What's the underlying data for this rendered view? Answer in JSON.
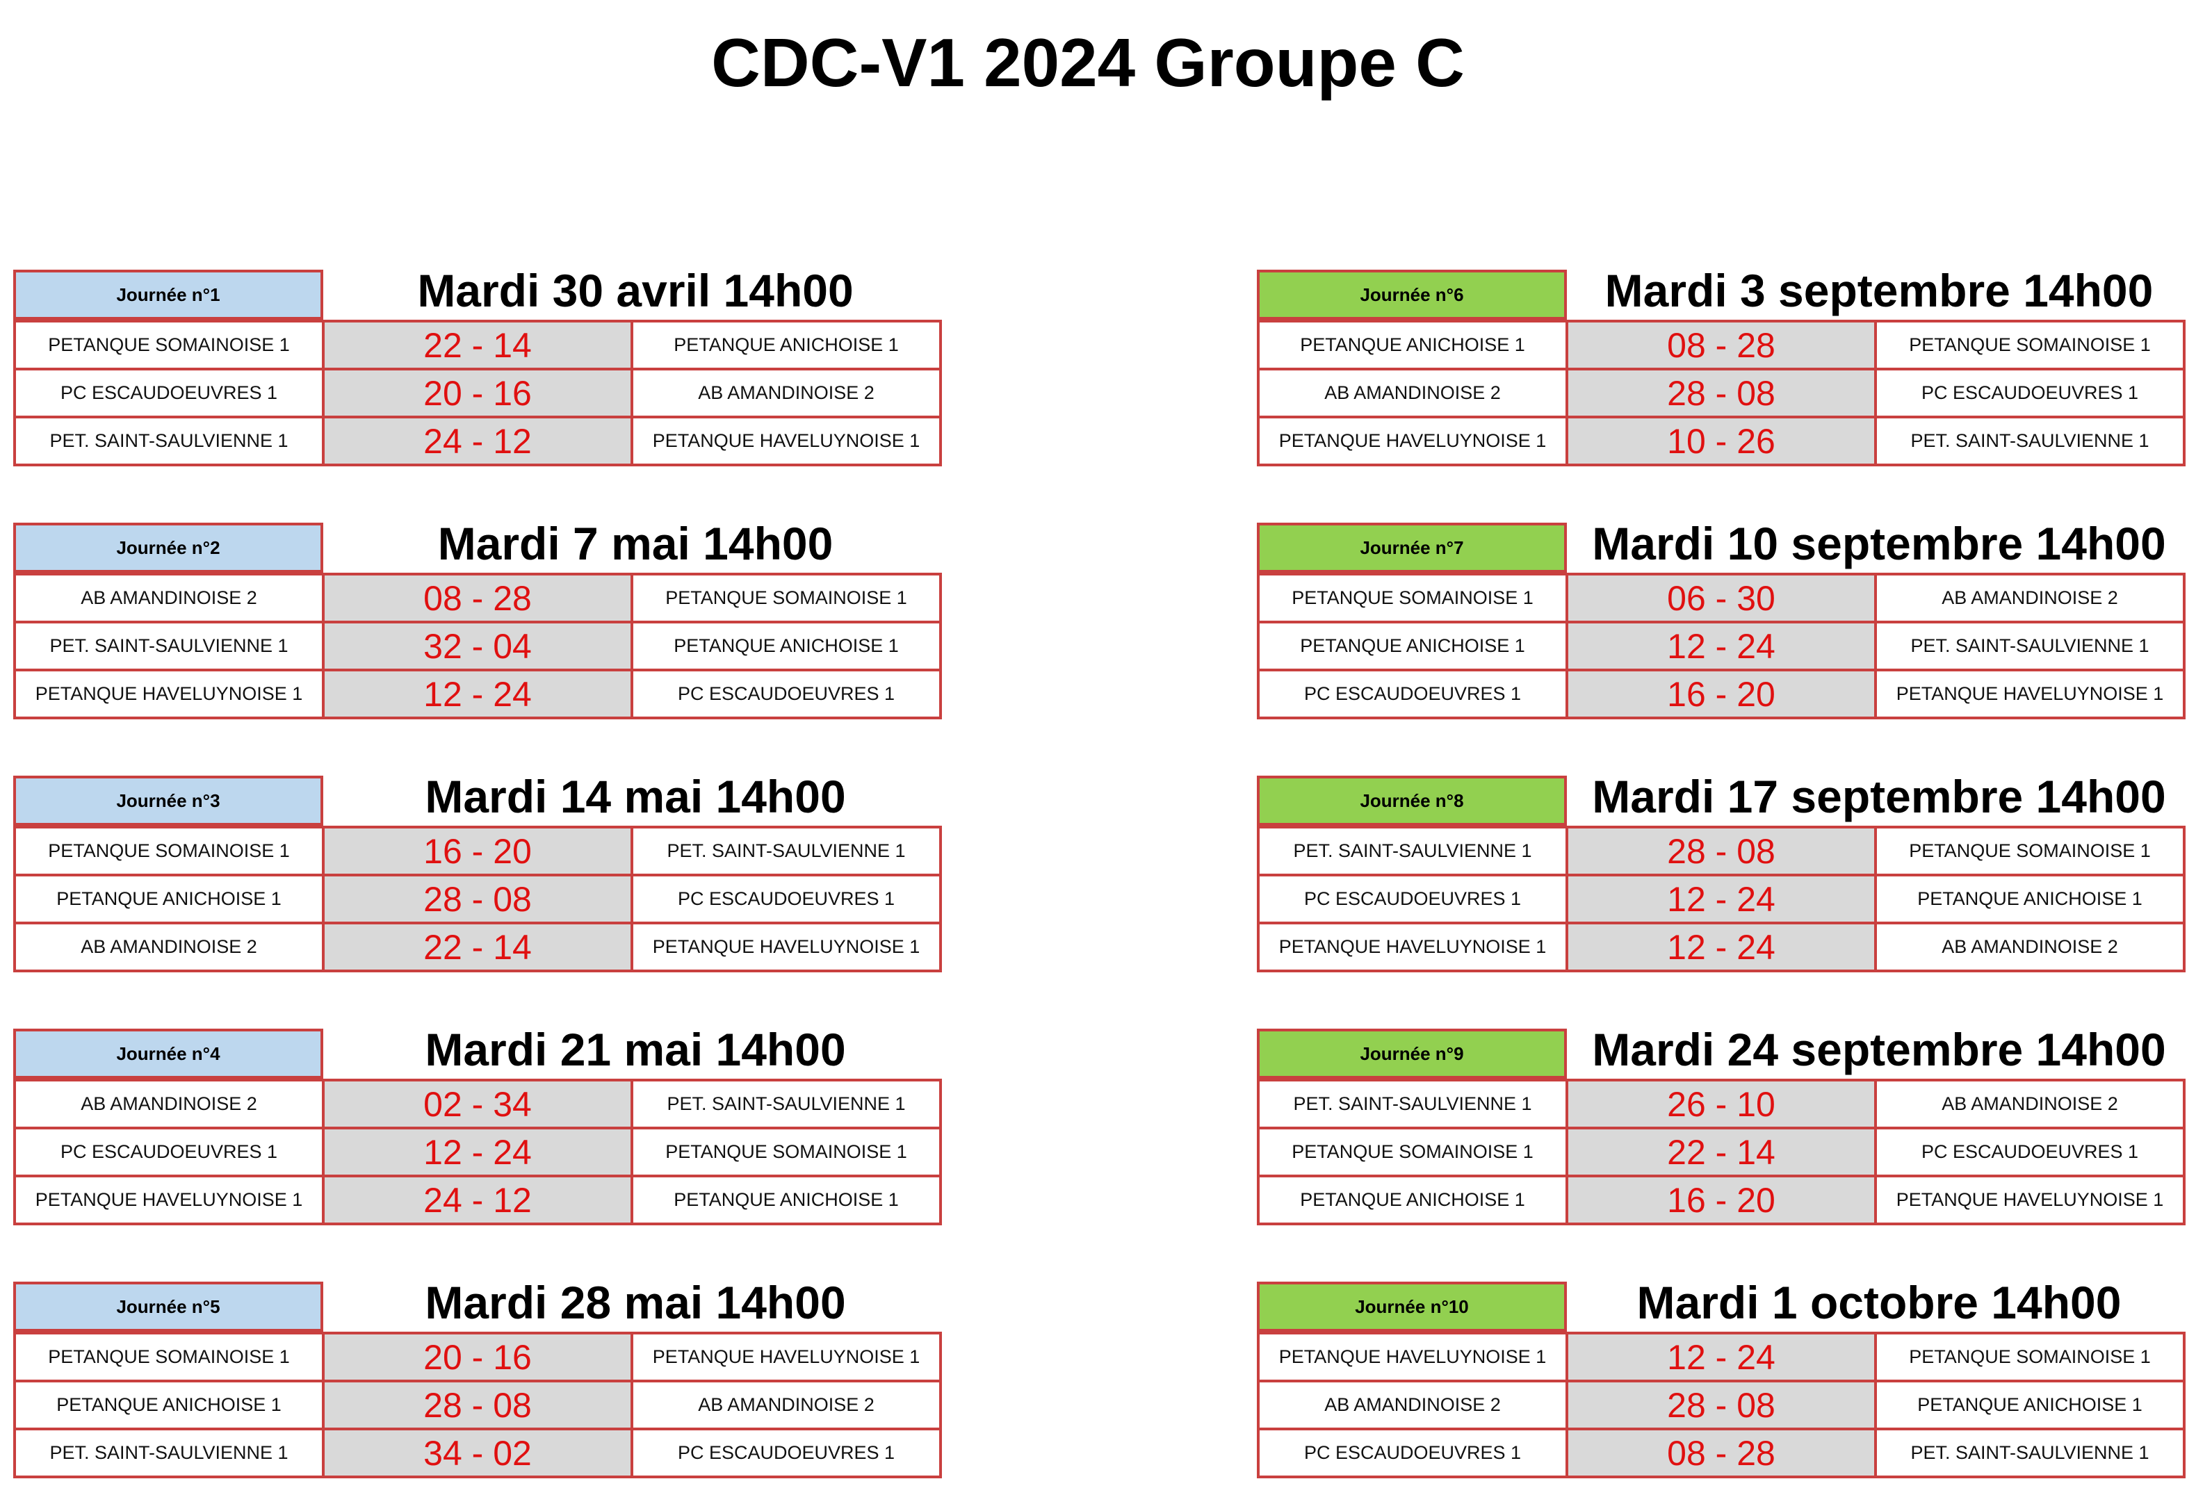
{
  "title": "CDC-V1 2024 Groupe C",
  "colors": {
    "border": "#c9403f",
    "label_left_bg": "#bdd7ee",
    "label_right_bg": "#92d050",
    "score_bg": "#d9d9d9",
    "score_text": "#e01010"
  },
  "journees": [
    {
      "label": "Journée n°1",
      "date": "Mardi 30 avril 14h00",
      "matches": [
        {
          "home": "PETANQUE SOMAINOISE 1",
          "score": "22 - 14",
          "away": "PETANQUE ANICHOISE 1"
        },
        {
          "home": "PC ESCAUDOEUVRES 1",
          "score": "20 - 16",
          "away": "AB AMANDINOISE 2"
        },
        {
          "home": "PET. SAINT-SAULVIENNE 1",
          "score": "24 - 12",
          "away": "PETANQUE HAVELUYNOISE 1"
        }
      ]
    },
    {
      "label": "Journée n°2",
      "date": "Mardi 7 mai 14h00",
      "matches": [
        {
          "home": "AB AMANDINOISE 2",
          "score": "08 - 28",
          "away": "PETANQUE SOMAINOISE 1"
        },
        {
          "home": "PET. SAINT-SAULVIENNE 1",
          "score": "32 - 04",
          "away": "PETANQUE ANICHOISE 1"
        },
        {
          "home": "PETANQUE HAVELUYNOISE 1",
          "score": "12 - 24",
          "away": "PC ESCAUDOEUVRES 1"
        }
      ]
    },
    {
      "label": "Journée n°3",
      "date": "Mardi 14 mai 14h00",
      "matches": [
        {
          "home": "PETANQUE SOMAINOISE 1",
          "score": "16 - 20",
          "away": "PET. SAINT-SAULVIENNE 1"
        },
        {
          "home": "PETANQUE ANICHOISE 1",
          "score": "28 - 08",
          "away": "PC ESCAUDOEUVRES 1"
        },
        {
          "home": "AB AMANDINOISE 2",
          "score": "22 - 14",
          "away": "PETANQUE HAVELUYNOISE 1"
        }
      ]
    },
    {
      "label": "Journée n°4",
      "date": "Mardi 21 mai 14h00",
      "matches": [
        {
          "home": "AB AMANDINOISE 2",
          "score": "02 - 34",
          "away": "PET. SAINT-SAULVIENNE 1"
        },
        {
          "home": "PC ESCAUDOEUVRES 1",
          "score": "12 - 24",
          "away": "PETANQUE SOMAINOISE 1"
        },
        {
          "home": "PETANQUE HAVELUYNOISE 1",
          "score": "24 - 12",
          "away": "PETANQUE ANICHOISE 1"
        }
      ]
    },
    {
      "label": "Journée n°5",
      "date": "Mardi 28 mai 14h00",
      "matches": [
        {
          "home": "PETANQUE SOMAINOISE 1",
          "score": "20 - 16",
          "away": "PETANQUE HAVELUYNOISE 1"
        },
        {
          "home": "PETANQUE ANICHOISE 1",
          "score": "28 - 08",
          "away": "AB AMANDINOISE 2"
        },
        {
          "home": "PET. SAINT-SAULVIENNE 1",
          "score": "34 - 02",
          "away": "PC ESCAUDOEUVRES 1"
        }
      ]
    },
    {
      "label": "Journée n°6",
      "date": "Mardi 3 septembre 14h00",
      "matches": [
        {
          "home": "PETANQUE ANICHOISE 1",
          "score": "08 - 28",
          "away": "PETANQUE SOMAINOISE 1"
        },
        {
          "home": "AB AMANDINOISE 2",
          "score": "28 - 08",
          "away": "PC ESCAUDOEUVRES 1"
        },
        {
          "home": "PETANQUE HAVELUYNOISE 1",
          "score": "10 - 26",
          "away": "PET. SAINT-SAULVIENNE 1"
        }
      ]
    },
    {
      "label": "Journée n°7",
      "date": "Mardi 10 septembre 14h00",
      "matches": [
        {
          "home": "PETANQUE SOMAINOISE 1",
          "score": "06 - 30",
          "away": "AB AMANDINOISE 2"
        },
        {
          "home": "PETANQUE ANICHOISE 1",
          "score": "12 - 24",
          "away": "PET. SAINT-SAULVIENNE 1"
        },
        {
          "home": "PC ESCAUDOEUVRES 1",
          "score": "16 - 20",
          "away": "PETANQUE HAVELUYNOISE 1"
        }
      ]
    },
    {
      "label": "Journée n°8",
      "date": "Mardi 17 septembre 14h00",
      "matches": [
        {
          "home": "PET. SAINT-SAULVIENNE 1",
          "score": "28 - 08",
          "away": "PETANQUE SOMAINOISE 1"
        },
        {
          "home": "PC ESCAUDOEUVRES 1",
          "score": "12 - 24",
          "away": "PETANQUE ANICHOISE 1"
        },
        {
          "home": "PETANQUE HAVELUYNOISE 1",
          "score": "12 - 24",
          "away": "AB AMANDINOISE 2"
        }
      ]
    },
    {
      "label": "Journée n°9",
      "date": "Mardi 24 septembre 14h00",
      "matches": [
        {
          "home": "PET. SAINT-SAULVIENNE 1",
          "score": "26 - 10",
          "away": "AB AMANDINOISE 2"
        },
        {
          "home": "PETANQUE SOMAINOISE 1",
          "score": "22 - 14",
          "away": "PC ESCAUDOEUVRES 1"
        },
        {
          "home": "PETANQUE ANICHOISE 1",
          "score": "16 - 20",
          "away": "PETANQUE HAVELUYNOISE 1"
        }
      ]
    },
    {
      "label": "Journée n°10",
      "date": "Mardi 1 octobre 14h00",
      "matches": [
        {
          "home": "PETANQUE HAVELUYNOISE 1",
          "score": "12 - 24",
          "away": "PETANQUE SOMAINOISE 1"
        },
        {
          "home": "AB AMANDINOISE 2",
          "score": "28 - 08",
          "away": "PETANQUE ANICHOISE 1"
        },
        {
          "home": "PC ESCAUDOEUVRES 1",
          "score": "08 - 28",
          "away": "PET. SAINT-SAULVIENNE 1"
        }
      ]
    }
  ]
}
